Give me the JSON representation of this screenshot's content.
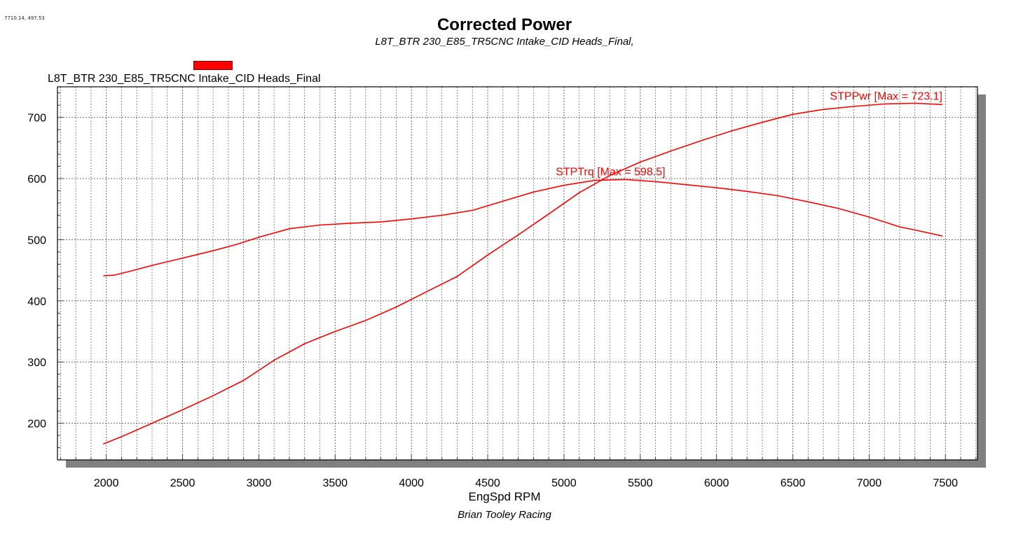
{
  "header": {
    "coords_readout": "7710.14, 497.53",
    "title": "Corrected Power",
    "subtitle": "L8T_BTR 230_E85_TR5CNC Intake_CID Heads_Final,",
    "legend_label": "L8T_BTR 230_E85_TR5CNC Intake_CID Heads_Final",
    "footer": "Brian Tooley Racing"
  },
  "colors": {
    "series": "#ff0000",
    "grid": "#555555",
    "shadow": "#808080"
  },
  "chart_data": {
    "type": "line",
    "title": "Corrected Power",
    "subtitle": "L8T_BTR 230_E85_TR5CNC Intake_CID Heads_Final,",
    "xlabel": "EngSpd RPM",
    "ylabel": "",
    "xlim": [
      1680,
      7710
    ],
    "ylim": [
      140,
      750
    ],
    "x_ticks": [
      2000,
      2500,
      3000,
      3500,
      4000,
      4500,
      5000,
      5500,
      6000,
      6500,
      7000,
      7500
    ],
    "y_ticks": [
      200,
      300,
      400,
      500,
      600,
      700
    ],
    "grid": true,
    "legend": "top-left",
    "series": [
      {
        "name": "STPTrq",
        "annotation": "STPTrq [Max = 598.5]",
        "x": [
          1980,
          2050,
          2150,
          2300,
          2500,
          2700,
          2850,
          3000,
          3200,
          3400,
          3600,
          3800,
          4000,
          4200,
          4400,
          4600,
          4800,
          5000,
          5200,
          5400,
          5600,
          5800,
          6000,
          6200,
          6400,
          6600,
          6800,
          7000,
          7200,
          7300,
          7480
        ],
        "y": [
          441,
          442,
          448,
          458,
          470,
          482,
          492,
          504,
          518,
          524,
          527,
          529,
          534,
          540,
          548,
          563,
          578,
          589,
          597,
          598.5,
          595,
          590,
          585,
          579,
          572,
          562,
          551,
          537,
          521,
          516,
          506
        ]
      },
      {
        "name": "STPPwr",
        "annotation": "STPPwr [Max = 723.1]",
        "x": [
          1980,
          2100,
          2300,
          2500,
          2700,
          2900,
          3100,
          3300,
          3500,
          3700,
          3900,
          4100,
          4300,
          4500,
          4700,
          4900,
          5100,
          5300,
          5500,
          5700,
          5900,
          6100,
          6300,
          6500,
          6700,
          6900,
          7100,
          7300,
          7480
        ],
        "y": [
          166,
          178,
          200,
          222,
          245,
          270,
          303,
          330,
          350,
          368,
          390,
          415,
          440,
          475,
          508,
          542,
          577,
          605,
          627,
          645,
          662,
          678,
          692,
          705,
          713,
          718,
          722,
          723.1,
          721
        ]
      }
    ]
  }
}
